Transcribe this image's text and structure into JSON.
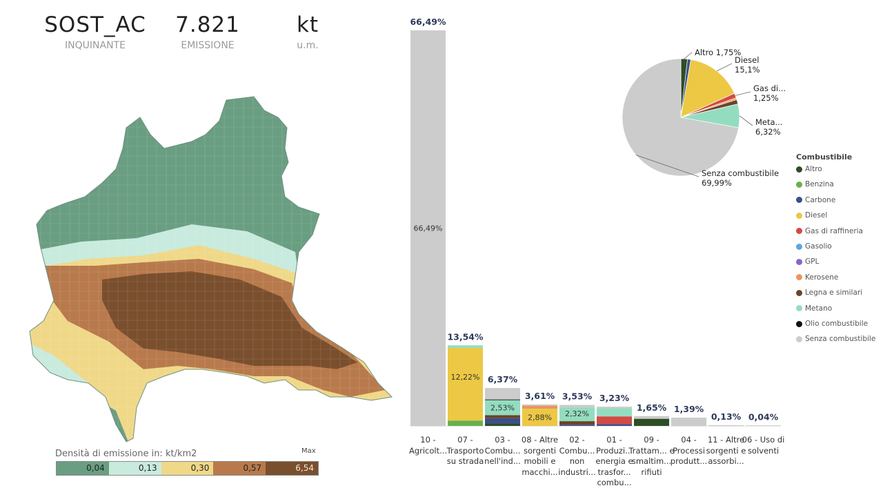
{
  "kpis": [
    {
      "value": "SOST_AC",
      "label": "INQUINANTE"
    },
    {
      "value": "7.821",
      "label": "EMISSIONE"
    },
    {
      "value": "kt",
      "label": "u.m."
    }
  ],
  "map": {
    "legend_title": "Densità di emissione in: kt/km2",
    "legend_max": "Max",
    "classes": [
      {
        "label": "0,04",
        "color": "#6a9e82"
      },
      {
        "label": "0,13",
        "color": "#c8ebde"
      },
      {
        "label": "0,30",
        "color": "#f0d889"
      },
      {
        "label": "0,57",
        "color": "#b87a4c"
      },
      {
        "label": "6,54",
        "color": "#7a4f2e"
      }
    ]
  },
  "fuels": [
    {
      "name": "Altro",
      "color": "#2e4d25"
    },
    {
      "name": "Benzina",
      "color": "#6ab04c"
    },
    {
      "name": "Carbone",
      "color": "#3b4f8a"
    },
    {
      "name": "Diesel",
      "color": "#ecc844"
    },
    {
      "name": "Gas di raffineria",
      "color": "#d34a44"
    },
    {
      "name": "Gasolio",
      "color": "#5fa7de"
    },
    {
      "name": "GPL",
      "color": "#8a64c8"
    },
    {
      "name": "Kerosene",
      "color": "#e9965c"
    },
    {
      "name": "Legna e similari",
      "color": "#6b4428"
    },
    {
      "name": "Metano",
      "color": "#94dcc0"
    },
    {
      "name": "Olio combustibile",
      "color": "#111111"
    },
    {
      "name": "Senza combustibile",
      "color": "#cccccc"
    }
  ],
  "legend": {
    "title": "Combustibile"
  },
  "chart_data": [
    {
      "type": "bar",
      "title": "",
      "stacked": true,
      "ylim": [
        0,
        66.49
      ],
      "categories": [
        "10 - Agricolt...",
        "07 - Trasporto su strada",
        "03 - Combu... nell'ind...",
        "08 - Altre sorgenti mobili e macchi...",
        "02 - Combu... non industri...",
        "01 - Produzi... energia e trasfor... combu...",
        "09 - Trattam... e smaltim... rifiuti",
        "04 - Processi produtt...",
        "11 - Altre sorgenti e assorbi...",
        "06 - Uso di solventi"
      ],
      "totals": [
        66.49,
        13.54,
        6.37,
        3.61,
        3.53,
        3.23,
        1.65,
        1.39,
        0.13,
        0.04
      ],
      "total_labels": [
        "66,49%",
        "13,54%",
        "6,37%",
        "3,61%",
        "3,53%",
        "3,23%",
        "1,65%",
        "1,39%",
        "0,13%",
        "0,04%"
      ],
      "segment_labels": [
        {
          "category": 0,
          "text": "66,49%"
        },
        {
          "category": 1,
          "text": "12,22%"
        },
        {
          "category": 2,
          "text": "2,53%"
        },
        {
          "category": 3,
          "text": "2,88%"
        },
        {
          "category": 4,
          "text": "2,32%"
        }
      ],
      "stacks": [
        [
          {
            "fuel": "Senza combustibile",
            "value": 66.49
          }
        ],
        [
          {
            "fuel": "Benzina",
            "value": 0.9
          },
          {
            "fuel": "Diesel",
            "value": 12.22
          },
          {
            "fuel": "Metano",
            "value": 0.42
          }
        ],
        [
          {
            "fuel": "Altro",
            "value": 0.4
          },
          {
            "fuel": "Carbone",
            "value": 0.9
          },
          {
            "fuel": "Legna e similari",
            "value": 0.5
          },
          {
            "fuel": "Metano",
            "value": 2.53
          },
          {
            "fuel": "Olio combustibile",
            "value": 0.12
          },
          {
            "fuel": "Senza combustibile",
            "value": 1.92
          }
        ],
        [
          {
            "fuel": "Diesel",
            "value": 2.88
          },
          {
            "fuel": "Kerosene",
            "value": 0.53
          },
          {
            "fuel": "Senza combustibile",
            "value": 0.2
          }
        ],
        [
          {
            "fuel": "Carbone",
            "value": 0.2
          },
          {
            "fuel": "Legna e similari",
            "value": 0.6
          },
          {
            "fuel": "Metano",
            "value": 2.32
          },
          {
            "fuel": "Senza combustibile",
            "value": 0.41
          }
        ],
        [
          {
            "fuel": "Carbone",
            "value": 0.3
          },
          {
            "fuel": "Gas di raffineria",
            "value": 1.3
          },
          {
            "fuel": "Metano",
            "value": 1.4
          },
          {
            "fuel": "Senza combustibile",
            "value": 0.23
          }
        ],
        [
          {
            "fuel": "Altro",
            "value": 1.2
          },
          {
            "fuel": "Senza combustibile",
            "value": 0.45
          }
        ],
        [
          {
            "fuel": "Senza combustibile",
            "value": 1.39
          }
        ],
        [
          {
            "fuel": "Senza combustibile",
            "value": 0.13
          }
        ],
        [
          {
            "fuel": "Senza combustibile",
            "value": 0.04
          }
        ]
      ]
    },
    {
      "type": "pie",
      "title": "",
      "slices": [
        {
          "fuel": "Altro",
          "value": 1.75
        },
        {
          "fuel": "Carbone",
          "value": 0.9
        },
        {
          "fuel": "Diesel",
          "value": 15.1
        },
        {
          "fuel": "Gas di raffineria",
          "value": 1.25
        },
        {
          "fuel": "Kerosene",
          "value": 0.5
        },
        {
          "fuel": "Legna e similari",
          "value": 1.2
        },
        {
          "fuel": "Metano",
          "value": 6.32
        },
        {
          "fuel": "Senza combustibile",
          "value": 69.99
        }
      ],
      "labels": [
        {
          "name": "Altro",
          "value": "1,75%"
        },
        {
          "name": "Diesel",
          "value": "15,1%"
        },
        {
          "name": "Gas di...",
          "value": "1,25%"
        },
        {
          "name": "Meta...",
          "value": "6,32%"
        },
        {
          "name": "Senza combustibile",
          "value": "69,99%"
        }
      ]
    }
  ]
}
